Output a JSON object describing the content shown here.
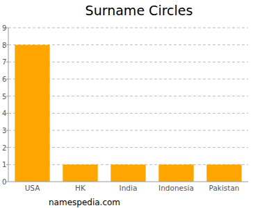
{
  "chart_data": {
    "type": "bar",
    "title": "Surname Circles",
    "categories": [
      "USA",
      "HK",
      "India",
      "Indonesia",
      "Pakistan"
    ],
    "values": [
      8,
      1,
      1,
      1,
      1
    ],
    "color": "#ffa500",
    "ylim": [
      0,
      9
    ],
    "yticks": [
      0,
      1,
      2,
      3,
      4,
      5,
      6,
      7,
      8,
      9
    ],
    "grid": true,
    "annotations": [
      "namespedia.com"
    ]
  }
}
